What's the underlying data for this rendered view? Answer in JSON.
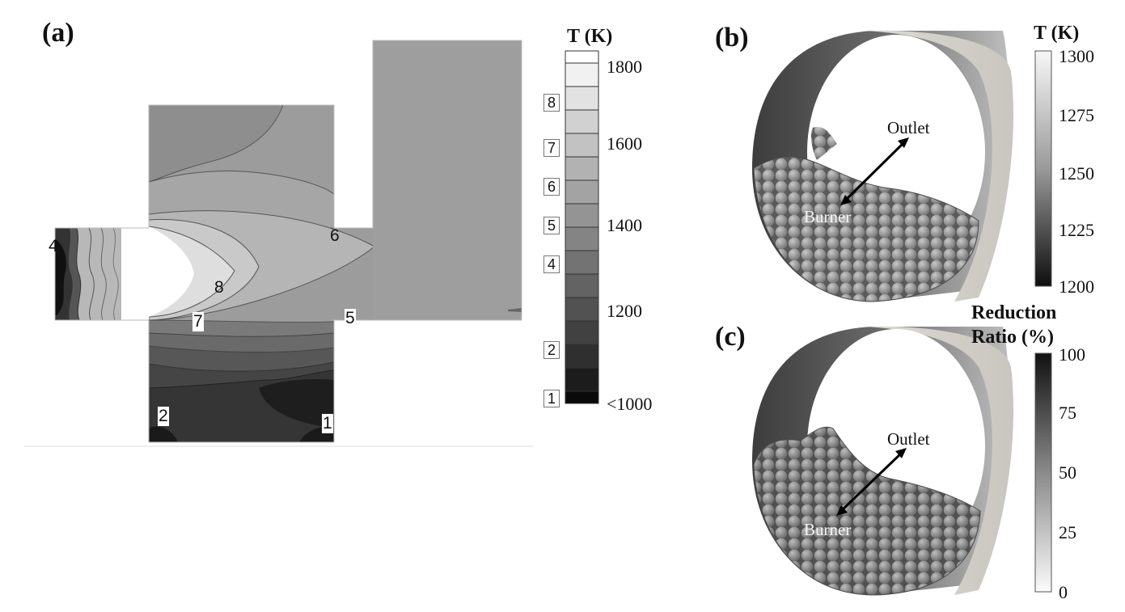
{
  "panel_a": {
    "label": "(a)",
    "contour_labels": [
      "4",
      "8",
      "7",
      "6",
      "5",
      "2",
      "1"
    ],
    "legend": {
      "title": "T (K)",
      "ticks": [
        "1800",
        "1600",
        "1400",
        "1200",
        "<1000"
      ],
      "levels": [
        "8",
        "7",
        "6",
        "5",
        "4",
        "2",
        "1"
      ]
    }
  },
  "panel_b": {
    "label": "(b)",
    "outlet_label": "Outlet",
    "burner_label": "Burner",
    "legend": {
      "title": "T (K)",
      "ticks": [
        "1300",
        "1275",
        "1250",
        "1225",
        "1200"
      ]
    }
  },
  "panel_c": {
    "label": "(c)",
    "outlet_label": "Outlet",
    "burner_label": "Burner",
    "legend": {
      "title_line1": "Reduction",
      "title_line2": "Ratio (%)",
      "ticks": [
        "100",
        "75",
        "50",
        "25",
        "0"
      ]
    }
  }
}
